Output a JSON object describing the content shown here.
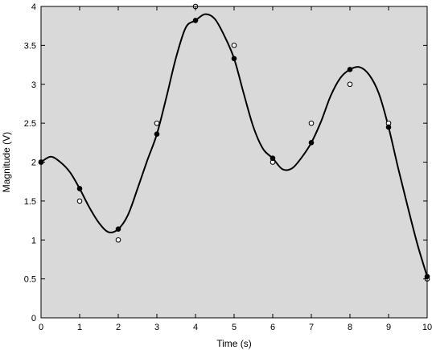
{
  "chart_data": {
    "type": "scatter",
    "title": "",
    "xlabel": "Time (s)",
    "ylabel": "Magnitude (V)",
    "xlim": [
      0,
      10
    ],
    "ylim": [
      0,
      4
    ],
    "x_ticks": [
      0,
      1,
      2,
      3,
      4,
      5,
      6,
      7,
      8,
      9,
      10
    ],
    "y_ticks": [
      0,
      0.5,
      1,
      1.5,
      2,
      2.5,
      3,
      3.5,
      4
    ],
    "x_tick_labels": [
      "0",
      "1",
      "2",
      "3",
      "4",
      "5",
      "6",
      "7",
      "8",
      "9",
      "10"
    ],
    "y_tick_labels": [
      "0",
      "0.5",
      "1",
      "1.5",
      "2",
      "2.5",
      "3",
      "3.5",
      "4"
    ],
    "grid": false,
    "background_color": "#d9d9d9",
    "series": [
      {
        "kind": "markers-open",
        "color": "#000000",
        "x": [
          0,
          1,
          2,
          3,
          4,
          5,
          6,
          7,
          8,
          9,
          10
        ],
        "y": [
          2.0,
          1.5,
          1.0,
          2.5,
          4.0,
          3.5,
          2.0,
          2.5,
          3.0,
          2.5,
          0.5
        ]
      },
      {
        "kind": "markers-filled",
        "color": "#000000",
        "x": [
          0,
          1,
          2,
          3,
          4,
          5,
          6,
          7,
          8,
          9,
          10
        ],
        "y": [
          2.0,
          1.66,
          1.14,
          2.36,
          3.82,
          3.33,
          2.05,
          2.25,
          3.19,
          2.45,
          0.53
        ]
      },
      {
        "kind": "line",
        "color": "#000000",
        "x": [
          0,
          0.25,
          0.5,
          0.75,
          1.0,
          1.25,
          1.5,
          1.75,
          2.0,
          2.25,
          2.5,
          2.75,
          3.0,
          3.25,
          3.5,
          3.75,
          4.0,
          4.25,
          4.5,
          4.75,
          5.0,
          5.25,
          5.5,
          5.75,
          6.0,
          6.25,
          6.5,
          6.75,
          7.0,
          7.25,
          7.5,
          7.75,
          8.0,
          8.25,
          8.5,
          8.75,
          9.0,
          9.25,
          9.5,
          9.75,
          10.0
        ],
        "y": [
          2.0,
          2.07,
          2.0,
          1.87,
          1.66,
          1.42,
          1.22,
          1.1,
          1.14,
          1.32,
          1.66,
          2.02,
          2.36,
          2.84,
          3.35,
          3.73,
          3.82,
          3.9,
          3.84,
          3.62,
          3.33,
          2.88,
          2.45,
          2.17,
          2.05,
          1.91,
          1.92,
          2.06,
          2.25,
          2.52,
          2.85,
          3.08,
          3.19,
          3.22,
          3.12,
          2.88,
          2.45,
          1.92,
          1.42,
          0.94,
          0.53
        ]
      }
    ]
  }
}
